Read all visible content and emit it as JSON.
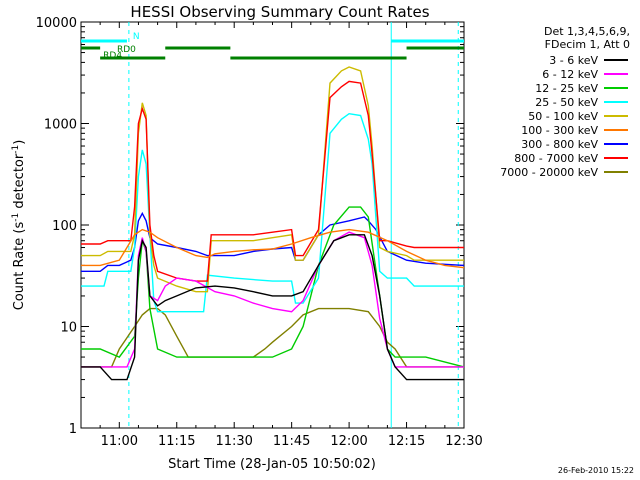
{
  "chart_data": {
    "type": "line",
    "title": "HESSI Observing Summary Count Rates",
    "xlabel": "Start Time (28-Jan-05 10:50:02)",
    "ylabel_main": "Count Rate (s",
    "ylabel_sup1": "-1",
    "ylabel_mid": " detector",
    "ylabel_sup2": "-1",
    "ylabel_end": ")",
    "x_unit": "minutes after 10:50:02",
    "xlim": [
      0,
      100
    ],
    "ylim": [
      1,
      10000
    ],
    "y_scale": "log",
    "x_ticks": [
      {
        "v": 10,
        "label": "11:00"
      },
      {
        "v": 25,
        "label": "11:15"
      },
      {
        "v": 40,
        "label": "11:30"
      },
      {
        "v": 55,
        "label": "11:45"
      },
      {
        "v": 70,
        "label": "12:00"
      },
      {
        "v": 85,
        "label": "12:15"
      },
      {
        "v": 100,
        "label": "12:30"
      }
    ],
    "y_ticks": [
      {
        "v": 1,
        "label": "1"
      },
      {
        "v": 10,
        "label": "10"
      },
      {
        "v": 100,
        "label": "100"
      },
      {
        "v": 1000,
        "label": "1000"
      },
      {
        "v": 10000,
        "label": "10000"
      }
    ],
    "legend_header": [
      "Det 1,3,4,5,6,9,",
      "FDecim 1, Att 0"
    ],
    "series": [
      {
        "name": "3 - 6 keV",
        "color": "#000000",
        "values": [
          [
            0,
            4
          ],
          [
            5,
            4
          ],
          [
            8,
            3
          ],
          [
            12,
            3
          ],
          [
            14,
            5
          ],
          [
            15,
            45
          ],
          [
            16,
            70
          ],
          [
            17,
            60
          ],
          [
            18,
            20
          ],
          [
            20,
            16
          ],
          [
            22,
            18
          ],
          [
            25,
            20
          ],
          [
            30,
            24
          ],
          [
            35,
            25
          ],
          [
            40,
            24
          ],
          [
            45,
            22
          ],
          [
            50,
            20
          ],
          [
            55,
            20
          ],
          [
            58,
            22
          ],
          [
            62,
            40
          ],
          [
            66,
            70
          ],
          [
            70,
            80
          ],
          [
            74,
            80
          ],
          [
            76,
            50
          ],
          [
            78,
            20
          ],
          [
            80,
            6
          ],
          [
            82,
            4
          ],
          [
            85,
            3
          ],
          [
            90,
            3
          ],
          [
            100,
            3
          ]
        ]
      },
      {
        "name": "6 - 12 keV",
        "color": "#ff00ff",
        "values": [
          [
            0,
            4
          ],
          [
            5,
            4
          ],
          [
            8,
            4
          ],
          [
            12,
            4
          ],
          [
            14,
            6
          ],
          [
            15,
            50
          ],
          [
            16,
            75
          ],
          [
            17,
            55
          ],
          [
            18,
            20
          ],
          [
            20,
            18
          ],
          [
            22,
            25
          ],
          [
            25,
            30
          ],
          [
            30,
            28
          ],
          [
            35,
            22
          ],
          [
            40,
            20
          ],
          [
            45,
            17
          ],
          [
            50,
            15
          ],
          [
            55,
            14
          ],
          [
            58,
            18
          ],
          [
            62,
            40
          ],
          [
            66,
            70
          ],
          [
            70,
            85
          ],
          [
            74,
            75
          ],
          [
            76,
            40
          ],
          [
            78,
            12
          ],
          [
            80,
            6
          ],
          [
            82,
            4
          ],
          [
            85,
            4
          ],
          [
            90,
            4
          ],
          [
            100,
            4
          ]
        ]
      },
      {
        "name": "12 - 25 keV",
        "color": "#00cc00",
        "values": [
          [
            0,
            6
          ],
          [
            5,
            6
          ],
          [
            10,
            5
          ],
          [
            14,
            8
          ],
          [
            15,
            30
          ],
          [
            16,
            70
          ],
          [
            17,
            55
          ],
          [
            18,
            15
          ],
          [
            20,
            6
          ],
          [
            25,
            5
          ],
          [
            30,
            5
          ],
          [
            40,
            5
          ],
          [
            50,
            5
          ],
          [
            55,
            6
          ],
          [
            58,
            10
          ],
          [
            62,
            40
          ],
          [
            66,
            100
          ],
          [
            70,
            150
          ],
          [
            73,
            150
          ],
          [
            75,
            120
          ],
          [
            78,
            20
          ],
          [
            80,
            6
          ],
          [
            82,
            5
          ],
          [
            90,
            5
          ],
          [
            100,
            4
          ]
        ]
      },
      {
        "name": "25 - 50 keV",
        "color": "#00ffff",
        "values": [
          [
            0,
            25
          ],
          [
            5,
            25
          ],
          [
            6,
            25
          ],
          [
            7,
            35
          ],
          [
            10,
            35
          ],
          [
            13,
            35
          ],
          [
            14,
            60
          ],
          [
            15,
            300
          ],
          [
            16,
            550
          ],
          [
            17,
            400
          ],
          [
            18,
            80
          ],
          [
            19,
            18
          ],
          [
            20,
            14
          ],
          [
            25,
            14
          ],
          [
            30,
            14
          ],
          [
            32,
            14
          ],
          [
            33,
            32
          ],
          [
            40,
            30
          ],
          [
            50,
            28
          ],
          [
            55,
            28
          ],
          [
            56,
            17
          ],
          [
            58,
            17
          ],
          [
            62,
            30
          ],
          [
            65,
            800
          ],
          [
            68,
            1100
          ],
          [
            70,
            1250
          ],
          [
            73,
            1200
          ],
          [
            75,
            700
          ],
          [
            76,
            400
          ],
          [
            78,
            35
          ],
          [
            80,
            30
          ],
          [
            85,
            30
          ],
          [
            87,
            25
          ],
          [
            100,
            25
          ]
        ]
      },
      {
        "name": "50 - 100 keV",
        "color": "#ccbb00",
        "values": [
          [
            0,
            50
          ],
          [
            5,
            50
          ],
          [
            7,
            55
          ],
          [
            10,
            55
          ],
          [
            13,
            55
          ],
          [
            14,
            80
          ],
          [
            15,
            800
          ],
          [
            16,
            1600
          ],
          [
            17,
            1200
          ],
          [
            18,
            80
          ],
          [
            19,
            40
          ],
          [
            20,
            30
          ],
          [
            25,
            25
          ],
          [
            30,
            22
          ],
          [
            33,
            22
          ],
          [
            34,
            70
          ],
          [
            40,
            70
          ],
          [
            45,
            70
          ],
          [
            50,
            75
          ],
          [
            55,
            80
          ],
          [
            56,
            45
          ],
          [
            58,
            45
          ],
          [
            62,
            80
          ],
          [
            65,
            2500
          ],
          [
            68,
            3300
          ],
          [
            70,
            3600
          ],
          [
            73,
            3300
          ],
          [
            75,
            1500
          ],
          [
            76,
            600
          ],
          [
            78,
            60
          ],
          [
            80,
            55
          ],
          [
            85,
            50
          ],
          [
            87,
            45
          ],
          [
            100,
            45
          ]
        ]
      },
      {
        "name": "100 - 300 keV",
        "color": "#ff7700",
        "values": [
          [
            0,
            40
          ],
          [
            5,
            40
          ],
          [
            10,
            45
          ],
          [
            14,
            80
          ],
          [
            15,
            85
          ],
          [
            16,
            90
          ],
          [
            18,
            85
          ],
          [
            20,
            75
          ],
          [
            25,
            60
          ],
          [
            30,
            50
          ],
          [
            33,
            48
          ],
          [
            35,
            52
          ],
          [
            40,
            55
          ],
          [
            45,
            57
          ],
          [
            50,
            58
          ],
          [
            55,
            65
          ],
          [
            60,
            75
          ],
          [
            65,
            85
          ],
          [
            70,
            90
          ],
          [
            75,
            85
          ],
          [
            80,
            70
          ],
          [
            85,
            55
          ],
          [
            90,
            45
          ],
          [
            95,
            40
          ],
          [
            100,
            38
          ]
        ]
      },
      {
        "name": "300 - 800 keV",
        "color": "#0000ff",
        "values": [
          [
            0,
            35
          ],
          [
            5,
            35
          ],
          [
            7,
            40
          ],
          [
            10,
            40
          ],
          [
            13,
            45
          ],
          [
            14,
            60
          ],
          [
            15,
            110
          ],
          [
            16,
            130
          ],
          [
            17,
            110
          ],
          [
            18,
            75
          ],
          [
            20,
            65
          ],
          [
            25,
            60
          ],
          [
            30,
            55
          ],
          [
            33,
            50
          ],
          [
            34,
            50
          ],
          [
            40,
            50
          ],
          [
            45,
            55
          ],
          [
            50,
            58
          ],
          [
            55,
            60
          ],
          [
            56,
            45
          ],
          [
            58,
            45
          ],
          [
            62,
            80
          ],
          [
            65,
            100
          ],
          [
            70,
            110
          ],
          [
            74,
            120
          ],
          [
            75,
            110
          ],
          [
            77,
            90
          ],
          [
            80,
            55
          ],
          [
            85,
            45
          ],
          [
            90,
            42
          ],
          [
            100,
            40
          ]
        ]
      },
      {
        "name": "800 - 7000 keV",
        "color": "#ff0000",
        "values": [
          [
            0,
            65
          ],
          [
            5,
            65
          ],
          [
            7,
            70
          ],
          [
            10,
            70
          ],
          [
            13,
            70
          ],
          [
            14,
            150
          ],
          [
            15,
            1000
          ],
          [
            16,
            1400
          ],
          [
            17,
            1100
          ],
          [
            18,
            100
          ],
          [
            19,
            50
          ],
          [
            20,
            35
          ],
          [
            25,
            30
          ],
          [
            30,
            28
          ],
          [
            33,
            28
          ],
          [
            34,
            80
          ],
          [
            40,
            80
          ],
          [
            45,
            80
          ],
          [
            50,
            85
          ],
          [
            55,
            90
          ],
          [
            56,
            50
          ],
          [
            58,
            50
          ],
          [
            62,
            90
          ],
          [
            65,
            1800
          ],
          [
            68,
            2300
          ],
          [
            70,
            2600
          ],
          [
            73,
            2500
          ],
          [
            75,
            1200
          ],
          [
            76,
            500
          ],
          [
            78,
            70
          ],
          [
            80,
            70
          ],
          [
            85,
            62
          ],
          [
            87,
            60
          ],
          [
            100,
            60
          ]
        ]
      },
      {
        "name": "7000 - 20000 keV",
        "color": "#808000",
        "values": [
          [
            0,
            4
          ],
          [
            5,
            4
          ],
          [
            8,
            4
          ],
          [
            10,
            6
          ],
          [
            14,
            10
          ],
          [
            16,
            13
          ],
          [
            18,
            15
          ],
          [
            20,
            15
          ],
          [
            22,
            13
          ],
          [
            25,
            8
          ],
          [
            28,
            5
          ],
          [
            30,
            5
          ],
          [
            35,
            5
          ],
          [
            40,
            5
          ],
          [
            45,
            5
          ],
          [
            48,
            6
          ],
          [
            50,
            7
          ],
          [
            55,
            10
          ],
          [
            58,
            13
          ],
          [
            62,
            15
          ],
          [
            65,
            15
          ],
          [
            70,
            15
          ],
          [
            75,
            14
          ],
          [
            78,
            10
          ],
          [
            80,
            7
          ],
          [
            82,
            6
          ],
          [
            85,
            4
          ],
          [
            90,
            4
          ],
          [
            95,
            4
          ],
          [
            100,
            4
          ]
        ]
      }
    ],
    "vertical_markers": [
      {
        "x": 12.5,
        "style": "dashed",
        "color": "#00ffff"
      },
      {
        "x": 81,
        "style": "solid",
        "color": "#00ffff"
      },
      {
        "x": 98.5,
        "style": "dashed",
        "color": "#00ffff"
      }
    ],
    "top_bars": [
      {
        "x0": 0,
        "x1": 12,
        "label": "N",
        "color": "#00ffff",
        "level": "top"
      },
      {
        "x0": 81,
        "x1": 100,
        "label": "",
        "color": "#00ffff",
        "level": "top"
      },
      {
        "x0": 0,
        "x1": 5,
        "label": "RD0",
        "color": "#008000",
        "level": "mid"
      },
      {
        "x0": 22,
        "x1": 39,
        "label": "",
        "color": "#008000",
        "level": "mid"
      },
      {
        "x0": 85,
        "x1": 100,
        "label": "",
        "color": "#008000",
        "level": "mid"
      },
      {
        "x0": 5,
        "x1": 22,
        "label": "RD4",
        "color": "#008000",
        "level": "low"
      },
      {
        "x0": 39,
        "x1": 85,
        "label": "",
        "color": "#008000",
        "level": "low"
      }
    ]
  },
  "footer_timestamp": "26-Feb-2010 15:22"
}
